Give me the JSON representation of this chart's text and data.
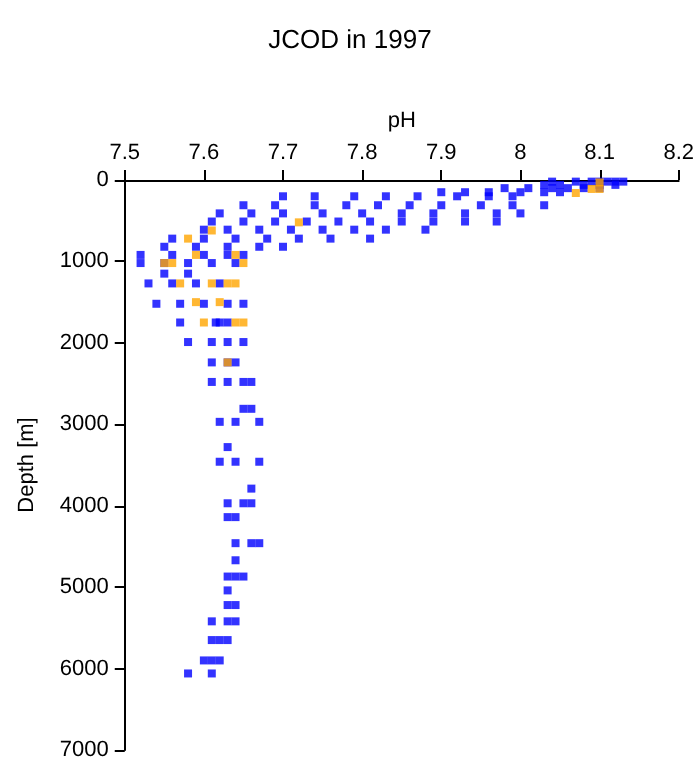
{
  "chart_data": {
    "type": "scatter",
    "title": "JCOD in 1997",
    "xlabel": "pH",
    "ylabel": "Depth [m]",
    "xlim": [
      7.5,
      8.2
    ],
    "xticks": [
      7.5,
      7.6,
      7.7,
      7.8,
      7.9,
      8,
      8.1,
      8.2
    ],
    "ylim": [
      7000,
      0
    ],
    "yticks": [
      0,
      1000,
      2000,
      3000,
      4000,
      5000,
      6000,
      7000
    ],
    "grid": false,
    "marker": "square",
    "series": [
      {
        "color": "#0000ff",
        "x": [
          8.04,
          8.07,
          8.09,
          8.1,
          8.11,
          8.12,
          8.13,
          8.03,
          8.05,
          8.08,
          8.1,
          8.12,
          7.98,
          8.01,
          8.04,
          8.06,
          8.08,
          8.1,
          7.9,
          7.93,
          7.96,
          8,
          8.03,
          8.05,
          7.7,
          7.74,
          7.79,
          7.83,
          7.87,
          7.92,
          7.96,
          7.99,
          7.65,
          7.69,
          7.74,
          7.78,
          7.82,
          7.86,
          7.9,
          7.95,
          7.99,
          8.03,
          7.62,
          7.66,
          7.7,
          7.75,
          7.8,
          7.85,
          7.89,
          7.93,
          7.97,
          8,
          7.61,
          7.65,
          7.69,
          7.73,
          7.77,
          7.81,
          7.85,
          7.89,
          7.93,
          7.97,
          7.6,
          7.63,
          7.67,
          7.71,
          7.75,
          7.79,
          7.83,
          7.88,
          7.56,
          7.6,
          7.64,
          7.68,
          7.72,
          7.76,
          7.81,
          7.55,
          7.59,
          7.63,
          7.67,
          7.7,
          7.52,
          7.56,
          7.6,
          7.63,
          7.65,
          7.52,
          7.55,
          7.58,
          7.61,
          7.64,
          7.55,
          7.58,
          7.53,
          7.56,
          7.59,
          7.62,
          7.54,
          7.57,
          7.6,
          7.63,
          7.65,
          7.57,
          7.615,
          7.62,
          7.63,
          7.58,
          7.61,
          7.63,
          7.65,
          7.61,
          7.63,
          7.64,
          7.61,
          7.63,
          7.65,
          7.66,
          7.65,
          7.66,
          7.62,
          7.64,
          7.67,
          7.63,
          7.62,
          7.64,
          7.67,
          7.66,
          7.63,
          7.65,
          7.66,
          7.63,
          7.64,
          7.64,
          7.66,
          7.67,
          7.64,
          7.63,
          7.64,
          7.65,
          7.63,
          7.63,
          7.64,
          7.61,
          7.63,
          7.64,
          7.61,
          7.62,
          7.63,
          7.6,
          7.61,
          7.62,
          7.58,
          7.61
        ],
        "values": [
          20,
          20,
          20,
          20,
          20,
          20,
          20,
          60,
          60,
          60,
          60,
          60,
          100,
          100,
          100,
          100,
          100,
          100,
          150,
          150,
          150,
          150,
          150,
          150,
          200,
          200,
          200,
          200,
          200,
          200,
          200,
          200,
          310,
          310,
          310,
          310,
          310,
          310,
          310,
          310,
          310,
          310,
          410,
          410,
          410,
          410,
          410,
          410,
          410,
          410,
          410,
          410,
          510,
          510,
          510,
          510,
          510,
          510,
          510,
          510,
          510,
          510,
          610,
          610,
          610,
          610,
          610,
          610,
          610,
          610,
          720,
          720,
          720,
          720,
          720,
          720,
          720,
          820,
          820,
          820,
          820,
          820,
          920,
          920,
          920,
          920,
          920,
          1020,
          1020,
          1020,
          1020,
          1020,
          1150,
          1150,
          1270,
          1270,
          1270,
          1270,
          1520,
          1520,
          1520,
          1520,
          1520,
          1750,
          1750,
          1750,
          1750,
          1990,
          1990,
          1990,
          1990,
          2240,
          2240,
          2240,
          2480,
          2480,
          2480,
          2480,
          2810,
          2810,
          2970,
          2970,
          2970,
          3280,
          3460,
          3460,
          3460,
          3790,
          3970,
          3970,
          3970,
          4140,
          4140,
          4460,
          4460,
          4460,
          4670,
          4870,
          4870,
          4870,
          5040,
          5220,
          5220,
          5420,
          5420,
          5420,
          5650,
          5650,
          5650,
          5900,
          5900,
          5900,
          6060,
          6060
        ]
      },
      {
        "color": "#ffa500",
        "x": [
          8.09,
          8.1,
          8.1,
          8.07,
          7.72,
          7.61,
          7.58,
          7.59,
          7.64,
          7.55,
          7.56,
          7.65,
          7.57,
          7.61,
          7.63,
          7.64,
          7.59,
          7.62,
          7.6,
          7.64,
          7.65,
          7.63
        ],
        "values": [
          110,
          110,
          30,
          160,
          520,
          620,
          720,
          920,
          920,
          1020,
          1020,
          1020,
          1270,
          1270,
          1270,
          1270,
          1500,
          1500,
          1750,
          1750,
          1750,
          2240
        ]
      }
    ]
  }
}
